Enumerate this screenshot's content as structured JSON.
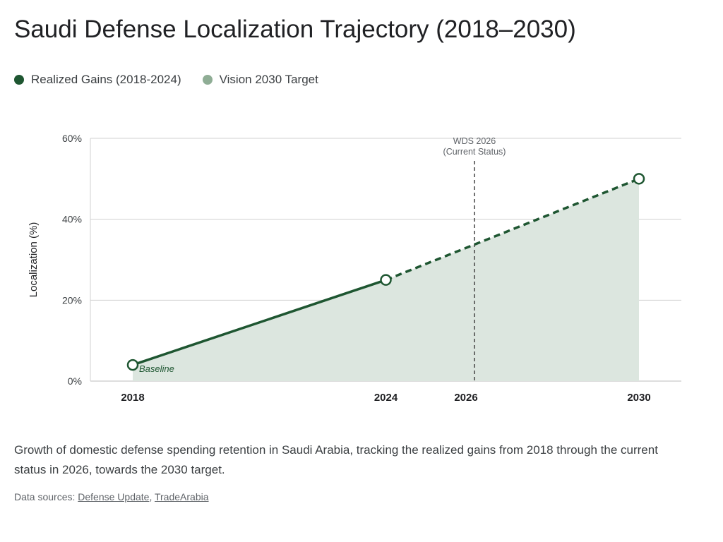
{
  "title": "Saudi Defense Localization Trajectory (2018–2030)",
  "legend": [
    {
      "label": "Realized Gains (2018-2024)",
      "color": "#1e5631"
    },
    {
      "label": "Vision 2030 Target",
      "color": "#8fad95"
    }
  ],
  "chart_data": {
    "type": "line",
    "ylabel": "Localization (%)",
    "ylim": [
      0,
      60
    ],
    "yticks": [
      "0%",
      "20%",
      "40%",
      "60%"
    ],
    "xlim": [
      2017,
      2031
    ],
    "xticks": [
      "2018",
      "2024",
      "2026",
      "2030"
    ],
    "grid": true,
    "series": [
      {
        "name": "Realized Gains (2018-2024)",
        "style": "solid",
        "x": [
          2018,
          2024
        ],
        "y": [
          4,
          25
        ]
      },
      {
        "name": "Vision 2030 Target",
        "style": "dashed",
        "x": [
          2024,
          2030
        ],
        "y": [
          25,
          50
        ]
      }
    ],
    "annotations": [
      {
        "text": "Baseline",
        "x": 2018,
        "y": 4
      },
      {
        "text_line1": "WDS 2026",
        "text_line2": "(Current Status)",
        "x": 2026
      }
    ],
    "colors": {
      "line": "#1e5631",
      "fill": "#dce6df",
      "grid": "#d0d0d0"
    }
  },
  "caption": "Growth of domestic defense spending retention in Saudi Arabia, tracking the realized gains from 2018 through the current status in 2026, towards the 2030 target.",
  "sources": {
    "prefix": "Data sources: ",
    "links": [
      "Defense Update",
      "TradeArabia"
    ],
    "separator": ", "
  }
}
